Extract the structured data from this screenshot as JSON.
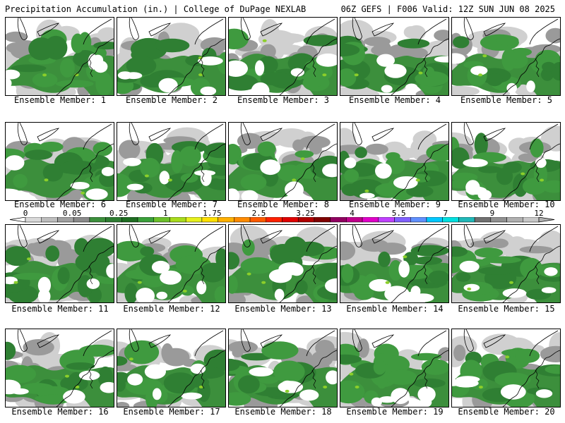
{
  "header": {
    "left": "Precipitation Accumulation (in.) | College of DuPage NEXLAB",
    "right": "06Z GEFS | F006 Valid: 12Z SUN JUN 08 2025"
  },
  "panels": [
    {
      "label": "Ensemble Member: 1"
    },
    {
      "label": "Ensemble Member: 2"
    },
    {
      "label": "Ensemble Member: 3"
    },
    {
      "label": "Ensemble Member: 4"
    },
    {
      "label": "Ensemble Member: 5"
    },
    {
      "label": "Ensemble Member: 6"
    },
    {
      "label": "Ensemble Member: 7"
    },
    {
      "label": "Ensemble Member: 8"
    },
    {
      "label": "Ensemble Member: 9"
    },
    {
      "label": "Ensemble Member: 10"
    },
    {
      "label": "Ensemble Member: 11"
    },
    {
      "label": "Ensemble Member: 12"
    },
    {
      "label": "Ensemble Member: 13"
    },
    {
      "label": "Ensemble Member: 14"
    },
    {
      "label": "Ensemble Member: 15"
    },
    {
      "label": "Ensemble Member: 16"
    },
    {
      "label": "Ensemble Member: 17"
    },
    {
      "label": "Ensemble Member: 18"
    },
    {
      "label": "Ensemble Member: 19"
    },
    {
      "label": "Ensemble Member: 20"
    }
  ],
  "colorbar": {
    "tick_labels": [
      "0",
      "0.05",
      "0.25",
      "1",
      "1.75",
      "2.5",
      "3.25",
      "4",
      "5.5",
      "7",
      "9",
      "12"
    ],
    "colors": [
      "#d9d9d9",
      "#bdbdbd",
      "#a0a0a0",
      "#8a8a8a",
      "#3c8f3c",
      "#2e7d32",
      "#1f6e22",
      "#3aa03a",
      "#6cc02a",
      "#a8dc1c",
      "#e6f01c",
      "#ffe000",
      "#ffb000",
      "#ff8a00",
      "#ff5a00",
      "#ff2000",
      "#e00000",
      "#b00000",
      "#800000",
      "#900060",
      "#c0008a",
      "#e000c8",
      "#c040ff",
      "#8060ff",
      "#6090ff",
      "#00c8ff",
      "#00e0e0",
      "#20b8b8",
      "#707070",
      "#909090",
      "#b0b0b0",
      "#c8c8c8"
    ]
  }
}
